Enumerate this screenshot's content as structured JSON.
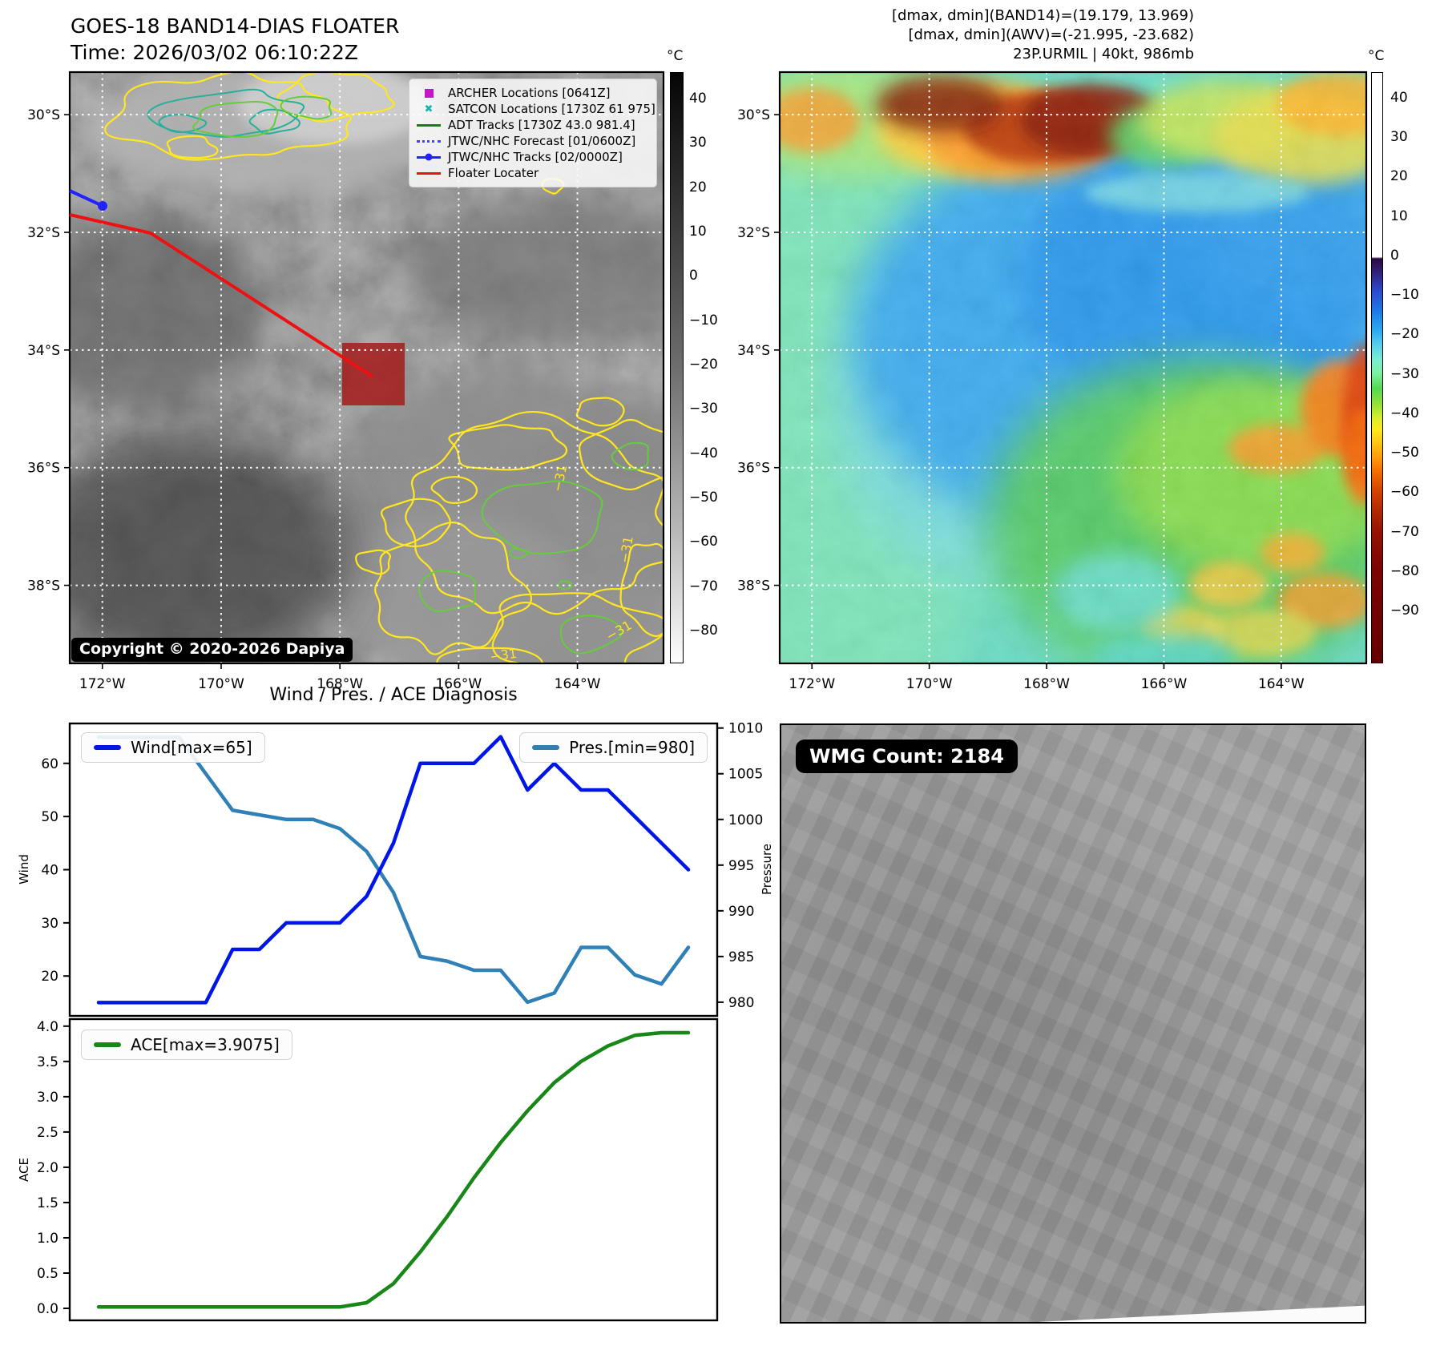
{
  "header": {
    "title_line1": "GOES-18 BAND14-DIAS FLOATER",
    "title_line2": "Time: 2026/03/02 06:10:22Z",
    "annotations": [
      "[dmax, dmin](BAND14)=(19.179, 13.969)",
      "[dmax, dmin](AWV)=(-21.995, -23.682)",
      "23P.URMIL | 40kt, 986mb"
    ]
  },
  "maps": {
    "lat_ticks": [
      "30°S",
      "32°S",
      "34°S",
      "36°S",
      "38°S"
    ],
    "lon_ticks": [
      "172°W",
      "170°W",
      "168°W",
      "166°W",
      "164°W"
    ],
    "left": {
      "legend": [
        {
          "label": "ARCHER Locations [0641Z]",
          "swatch": "magenta-square"
        },
        {
          "label": "SATCON Locations [1730Z 61 975]",
          "swatch": "teal-x"
        },
        {
          "label": "ADT Tracks [1730Z 43.0 981.4]",
          "swatch": "green-line"
        },
        {
          "label": "JTWC/NHC Forecast [01/0600Z]",
          "swatch": "blue-dotted"
        },
        {
          "label": "JTWC/NHC Tracks [02/0000Z]",
          "swatch": "blue-line-dot"
        },
        {
          "label": "Floater Locater",
          "swatch": "red-line"
        }
      ],
      "copyright": "Copyright © 2020-2026 Dapiya",
      "colorbar": {
        "unit": "°C",
        "ticks": [
          "40",
          "30",
          "20",
          "10",
          "0",
          "−10",
          "−20",
          "−30",
          "−40",
          "−50",
          "−60",
          "−70",
          "−80"
        ]
      },
      "contour_labels": [
        "−31",
        "−31",
        "−31",
        "−31"
      ]
    },
    "right": {
      "colorbar": {
        "unit": "°C",
        "ticks": [
          "40",
          "30",
          "20",
          "10",
          "0",
          "−10",
          "−20",
          "−30",
          "−40",
          "−50",
          "−60",
          "−70",
          "−80",
          "−90"
        ]
      }
    }
  },
  "wmg": {
    "label": "WMG Count: 2184"
  },
  "diagnosis": {
    "title": "Wind / Pres. / ACE Diagnosis",
    "wind_axis_label": "Wind",
    "pressure_axis_label": "Pressure",
    "ace_axis_label": "ACE"
  },
  "chart_data": [
    {
      "type": "line",
      "title": "Wind / Pres. / ACE Diagnosis (wind & pressure panel)",
      "x": [
        0,
        1,
        2,
        3,
        4,
        5,
        6,
        7,
        8,
        9,
        10,
        11,
        12,
        13,
        14,
        15,
        16,
        17,
        18,
        19,
        20,
        21,
        22
      ],
      "xticklabels": [],
      "series": [
        {
          "name": "Wind[max=65]",
          "axis": "left",
          "color": "#0016e8",
          "values": [
            15,
            15,
            15,
            15,
            15,
            25,
            25,
            30,
            30,
            30,
            35,
            45,
            60,
            60,
            60,
            65,
            55,
            60,
            55,
            55,
            50,
            45,
            40
          ]
        },
        {
          "name": "Pres.[min=980]",
          "axis": "right",
          "color": "#3080b8",
          "values": [
            1009,
            1009,
            1009,
            1009,
            1005,
            1001,
            1000.5,
            1000,
            1000,
            999,
            996.5,
            992,
            985,
            984.5,
            983.5,
            983.5,
            980,
            981,
            986,
            986,
            983,
            982,
            986
          ]
        }
      ],
      "ylabel_left": "Wind",
      "ylabel_right": "Pressure",
      "yticks_left": {
        "values": [
          20,
          30,
          40,
          50,
          60
        ],
        "labels": [
          "20",
          "30",
          "40",
          "50",
          "60"
        ]
      },
      "yticks_right": {
        "values": [
          980,
          985,
          990,
          995,
          1000,
          1005,
          1010
        ],
        "labels": [
          "980",
          "985",
          "990",
          "995",
          "1000",
          "1005",
          "1010"
        ]
      },
      "ylim_left": [
        12.5,
        67.5
      ],
      "ylim_right": [
        978.5,
        1010.5
      ],
      "grid": false,
      "legend_positions": [
        "upper left",
        "upper right"
      ]
    },
    {
      "type": "line",
      "title": "ACE panel",
      "x": [
        0,
        1,
        2,
        3,
        4,
        5,
        6,
        7,
        8,
        9,
        10,
        11,
        12,
        13,
        14,
        15,
        16,
        17,
        18,
        19,
        20,
        21,
        22
      ],
      "xticklabels": [],
      "series": [
        {
          "name": "ACE[max=3.9075]",
          "color": "#178717",
          "values": [
            0.02,
            0.02,
            0.02,
            0.02,
            0.02,
            0.02,
            0.02,
            0.02,
            0.02,
            0.02,
            0.08,
            0.35,
            0.8,
            1.3,
            1.85,
            2.35,
            2.8,
            3.2,
            3.5,
            3.72,
            3.87,
            3.9075,
            3.9075
          ]
        }
      ],
      "ylabel": "ACE",
      "yticks": {
        "values": [
          0.0,
          0.5,
          1.0,
          1.5,
          2.0,
          2.5,
          3.0,
          3.5,
          4.0
        ],
        "labels": [
          "0.0",
          "0.5",
          "1.0",
          "1.5",
          "2.0",
          "2.5",
          "3.0",
          "3.5",
          "4.0"
        ]
      },
      "ylim": [
        -0.17,
        4.1
      ],
      "grid": false,
      "legend_position": "upper left"
    }
  ]
}
